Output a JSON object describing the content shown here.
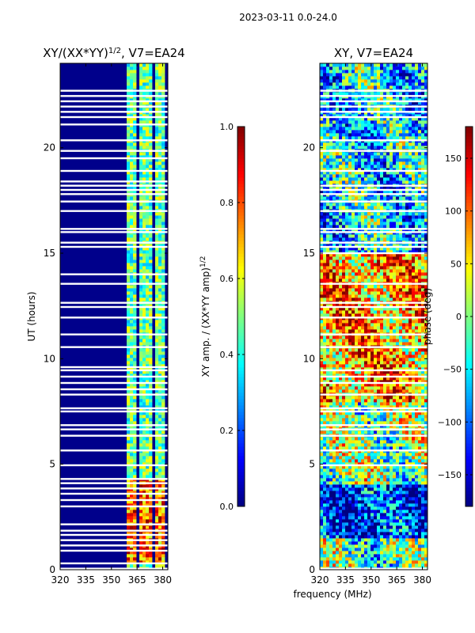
{
  "figure": {
    "suptitle": "2023-03-11 0.0-24.0",
    "common_xlabel": "frequency (MHz)"
  },
  "colormap": "jet",
  "chart_data": [
    {
      "type": "heatmap",
      "title_main": "XY/(XX*YY)",
      "title_sup": "1/2",
      "title_tail": ", V7=EA24",
      "xlabel": "",
      "ylabel": "UT (hours)",
      "xlim": [
        320,
        383
      ],
      "ylim": [
        0,
        24
      ],
      "xticks": [
        320,
        335,
        350,
        365,
        380
      ],
      "yticks": [
        0,
        5,
        10,
        15,
        20
      ],
      "colorbar": {
        "label_main": "XY amp. / (XX*YY amp)",
        "label_sup": "1/2",
        "range": [
          0.0,
          1.0
        ],
        "ticks": [
          "0.0",
          "0.2",
          "0.4",
          "0.6",
          "0.8",
          "1.0"
        ]
      },
      "flagged_hours": [
        0.05,
        0.3,
        0.9,
        1.15,
        1.4,
        1.65,
        1.85,
        2.15,
        3.0,
        3.3,
        3.6,
        3.85,
        4.1,
        4.3,
        4.95,
        5.65,
        6.35,
        6.65,
        6.85,
        7.5,
        7.65,
        8.3,
        8.55,
        8.85,
        9.15,
        9.45,
        9.6,
        10.55,
        11.15,
        11.95,
        12.45,
        12.65,
        13.55,
        14.0,
        15.3,
        15.5,
        16.0,
        16.15,
        17.0,
        17.45,
        17.8,
        18.0,
        18.2,
        18.4,
        18.9,
        19.5,
        19.85,
        20.35,
        21.1,
        21.45,
        21.7,
        21.95,
        22.2,
        22.45,
        22.7
      ]
    },
    {
      "type": "heatmap",
      "title": "XY, V7=EA24",
      "xlabel": "",
      "ylabel": "",
      "xlim": [
        320,
        383
      ],
      "ylim": [
        0,
        24
      ],
      "xticks": [
        320,
        335,
        350,
        365,
        380
      ],
      "yticks": [
        0,
        5,
        10,
        15,
        20
      ],
      "colorbar": {
        "label": "phase (deg)",
        "range": [
          -180,
          180
        ],
        "ticks": [
          "150",
          "100",
          "50",
          "0",
          "−50",
          "−100",
          "−150"
        ]
      },
      "flagged_hours": [
        0.05,
        4.95,
        5.65,
        6.35,
        6.65,
        6.85,
        7.5,
        7.65,
        8.3,
        8.85,
        9.15,
        9.45,
        10.55,
        11.15,
        11.95,
        12.45,
        12.65,
        13.55,
        15.0,
        15.3,
        15.5,
        16.0,
        16.15,
        17.0,
        17.45,
        17.8,
        18.0,
        18.2,
        18.9,
        19.85,
        20.35,
        21.45,
        21.7,
        21.95,
        22.2,
        22.45,
        22.7
      ]
    }
  ]
}
